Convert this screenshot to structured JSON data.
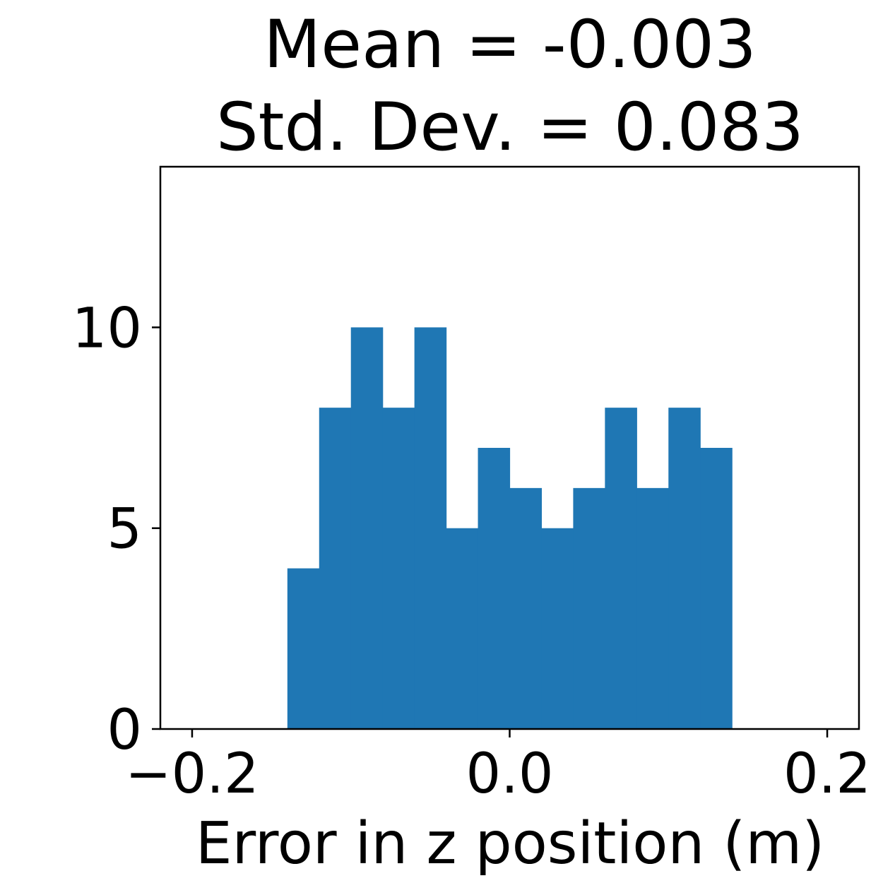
{
  "chart_data": {
    "type": "bar",
    "subtype": "histogram",
    "title_lines": [
      "Mean = -0.003",
      "Std. Dev. = 0.083"
    ],
    "xlabel": "Error in z position (m)",
    "ylabel": "",
    "xlim": [
      -0.22,
      0.22
    ],
    "ylim": [
      0,
      14
    ],
    "xticks": [
      -0.2,
      0.0,
      0.2
    ],
    "xtick_labels": [
      "−0.2",
      "0.0",
      "0.2"
    ],
    "yticks": [
      0,
      5,
      10
    ],
    "ytick_labels": [
      "0",
      "5",
      "10"
    ],
    "bin_edges": [
      -0.14,
      -0.12,
      -0.1,
      -0.08,
      -0.06,
      -0.04,
      -0.02,
      0.0,
      0.02,
      0.04,
      0.06,
      0.08,
      0.1,
      0.12,
      0.14
    ],
    "values": [
      4,
      8,
      10,
      8,
      10,
      5,
      7,
      6,
      5,
      6,
      8,
      6,
      8,
      7
    ],
    "bar_color": "#1f77b4",
    "grid": false,
    "legend": "none"
  }
}
